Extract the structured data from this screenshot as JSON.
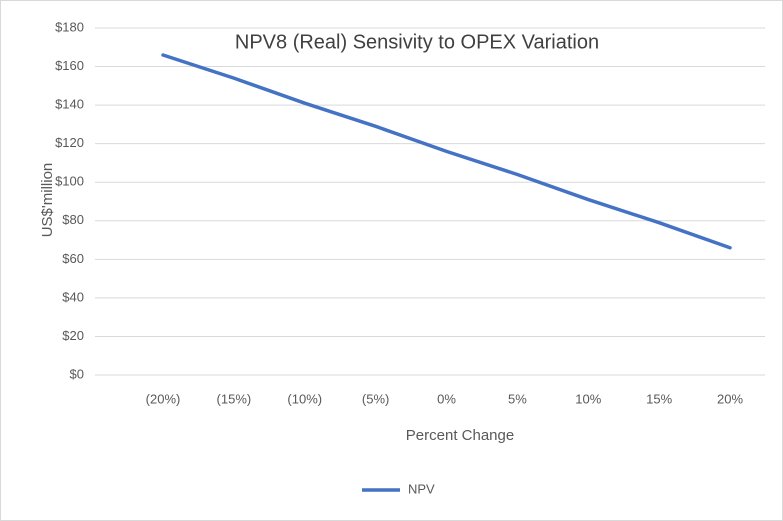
{
  "chart_data": {
    "type": "line",
    "title": "NPV8 (Real) Sensivity to OPEX Variation",
    "x_label": "Percent Change",
    "y_label": "US$'million",
    "categories": [
      "(20%)",
      "(15%)",
      "(10%)",
      "(5%)",
      "0%",
      "5%",
      "10%",
      "15%",
      "20%"
    ],
    "series": [
      {
        "name": "NPV",
        "color": "#4472c4",
        "values": [
          166,
          154,
          141,
          129,
          116,
          104,
          91,
          79,
          66
        ]
      }
    ],
    "ylim": [
      0,
      180
    ],
    "yticks": [
      {
        "value": 0,
        "label": "$0"
      },
      {
        "value": 20,
        "label": "$20"
      },
      {
        "value": 40,
        "label": "$40"
      },
      {
        "value": 60,
        "label": "$60"
      },
      {
        "value": 80,
        "label": "$80"
      },
      {
        "value": 100,
        "label": "$100"
      },
      {
        "value": 120,
        "label": "$120"
      },
      {
        "value": 140,
        "label": "$140"
      },
      {
        "value": 160,
        "label": "$160"
      },
      {
        "value": 180,
        "label": "$180"
      }
    ],
    "grid": true,
    "legend": "bottom"
  }
}
